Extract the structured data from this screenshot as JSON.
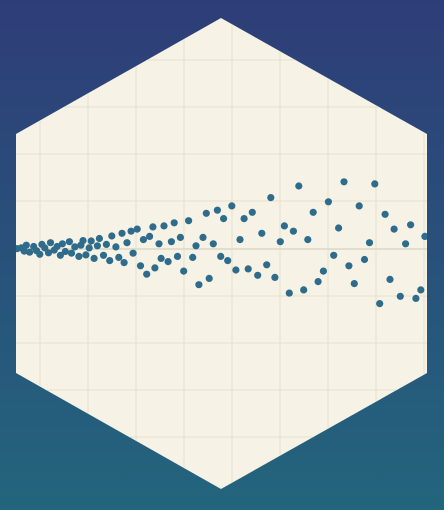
{
  "colors": {
    "background_top": "#2e3d78",
    "background_bottom": "#23657d",
    "hexagon_fill": "#f6f3e6",
    "grid": "#e5e1cf",
    "baseline": "#dcd8c6",
    "points": "#2f6c8c"
  },
  "chart_data": {
    "type": "scatter",
    "title": "",
    "xlabel": "",
    "ylabel": "",
    "xlim": [
      0,
      10
    ],
    "ylim": [
      -5,
      5
    ],
    "grid": true,
    "zero_line": true,
    "legend": "none",
    "series": [
      {
        "x": [
          0.03,
          0.13,
          0.2,
          0.25,
          0.33,
          0.43,
          0.5,
          0.58,
          0.63,
          0.7,
          0.79,
          0.84,
          0.93,
          1.0,
          1.08,
          1.13,
          1.2,
          1.3,
          1.35,
          1.43,
          1.53,
          1.58,
          1.63,
          1.7,
          1.78,
          1.83,
          1.9,
          1.98,
          2.03,
          2.13,
          2.2,
          2.28,
          2.33,
          2.43,
          2.5,
          2.58,
          2.63,
          2.7,
          2.8,
          2.85,
          2.95,
          3.03,
          3.1,
          3.18,
          3.25,
          3.33,
          3.38,
          3.48,
          3.53,
          3.6,
          3.7,
          3.78,
          3.85,
          3.93,
          4.0,
          4.08,
          4.2,
          4.3,
          4.38,
          4.45,
          4.55,
          4.63,
          4.7,
          4.8,
          4.9,
          4.98,
          5.05,
          5.15,
          5.25,
          5.35,
          5.45,
          5.55,
          5.65,
          5.75,
          5.88,
          5.98,
          6.1,
          6.2,
          6.3,
          6.43,
          6.53,
          6.65,
          6.75,
          6.88,
          7.0,
          7.1,
          7.23,
          7.35,
          7.48,
          7.6,
          7.73,
          7.85,
          7.98,
          8.1,
          8.23,
          8.35,
          8.48,
          8.6,
          8.73,
          8.85,
          8.98,
          9.1,
          9.2,
          9.35,
          9.48,
          9.6,
          9.73,
          9.85,
          9.95
        ],
        "y": [
          0.02,
          0.05,
          -0.1,
          0.18,
          -0.15,
          0.12,
          -0.08,
          -0.25,
          0.22,
          0.05,
          -0.18,
          0.3,
          -0.05,
          0.12,
          -0.3,
          0.25,
          -0.12,
          0.35,
          -0.2,
          0.1,
          -0.35,
          0.18,
          0.4,
          -0.28,
          0.05,
          0.38,
          -0.45,
          0.15,
          0.5,
          -0.3,
          0.22,
          -0.55,
          0.62,
          0.1,
          -0.4,
          0.75,
          -0.65,
          0.3,
          0.85,
          -0.2,
          0.95,
          -0.8,
          0.45,
          -1.2,
          0.6,
          1.05,
          -0.9,
          0.25,
          -0.45,
          1.1,
          -0.6,
          0.35,
          1.25,
          -0.35,
          0.55,
          -1.05,
          1.35,
          -0.4,
          0.15,
          -1.7,
          0.55,
          1.7,
          -1.4,
          0.25,
          1.85,
          -0.35,
          1.45,
          -0.55,
          2.05,
          -1.0,
          0.45,
          1.45,
          -0.95,
          1.75,
          -1.25,
          0.75,
          -0.75,
          2.45,
          -1.35,
          0.35,
          1.1,
          -2.1,
          0.85,
          3.0,
          -1.95,
          0.45,
          1.75,
          -1.55,
          -1.05,
          2.25,
          -0.3,
          1.0,
          3.2,
          -0.8,
          -1.65,
          2.05,
          -0.5,
          0.3,
          3.1,
          -2.6,
          1.65,
          -1.45,
          0.95,
          -2.25,
          0.25,
          1.15,
          -2.35,
          -1.95,
          0.6
        ]
      }
    ]
  }
}
